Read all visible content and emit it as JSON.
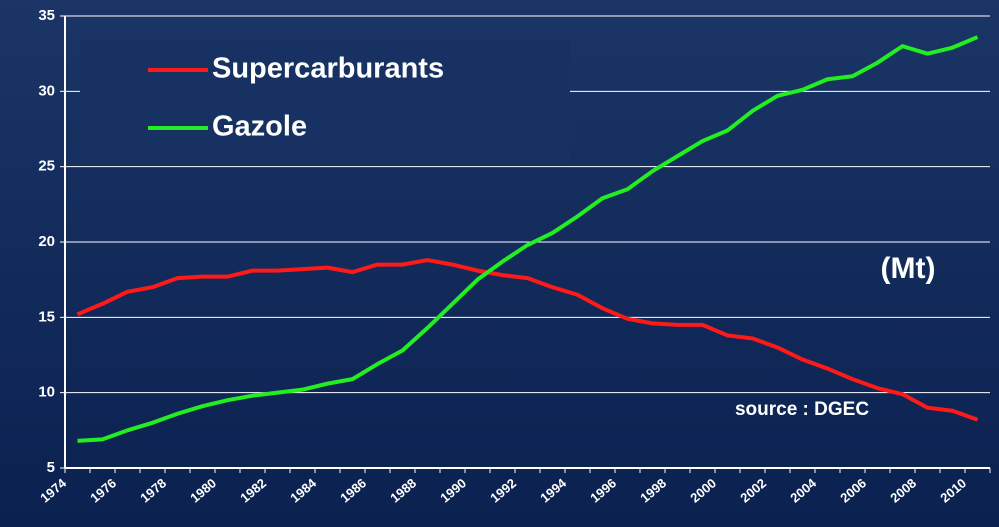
{
  "chart_data": {
    "type": "line",
    "categories": [
      "1974",
      null,
      "1976",
      null,
      "1978",
      null,
      "1980",
      null,
      "1982",
      null,
      "1984",
      null,
      "1986",
      null,
      "1988",
      null,
      "1990",
      null,
      "1992",
      null,
      "1994",
      null,
      "1996",
      null,
      "1998",
      null,
      "2000",
      null,
      "2002",
      null,
      "2004",
      null,
      "2006",
      null,
      "2008",
      null,
      "2010"
    ],
    "series": [
      {
        "name": "Supercarburants",
        "color": "#ff1a1a",
        "values": [
          15.2,
          15.9,
          16.7,
          17.0,
          17.6,
          17.7,
          17.7,
          18.1,
          18.1,
          18.2,
          18.3,
          18.0,
          18.5,
          18.5,
          18.8,
          18.5,
          18.1,
          17.8,
          17.6,
          17.0,
          16.5,
          15.6,
          14.9,
          14.6,
          14.5,
          14.5,
          13.8,
          13.6,
          13.0,
          12.2,
          11.6,
          10.9,
          10.3,
          9.9,
          9.0,
          8.8,
          8.2
        ]
      },
      {
        "name": "Gazole",
        "color": "#22ee22",
        "values": [
          6.8,
          6.9,
          7.5,
          8.0,
          8.6,
          9.1,
          9.5,
          9.8,
          10.0,
          10.2,
          10.6,
          10.9,
          11.9,
          12.8,
          14.3,
          15.9,
          17.5,
          18.7,
          19.8,
          20.6,
          21.7,
          22.9,
          23.5,
          24.7,
          25.7,
          26.7,
          27.4,
          28.7,
          29.7,
          30.1,
          30.8,
          31.0,
          31.9,
          33.0,
          32.5,
          32.9,
          33.6
        ]
      }
    ],
    "ylim": [
      5,
      35
    ],
    "yticks": [
      5,
      10,
      15,
      20,
      25,
      30,
      35
    ],
    "grid": true,
    "annotations": [
      "(Mt)",
      "source : DGEC"
    ]
  }
}
